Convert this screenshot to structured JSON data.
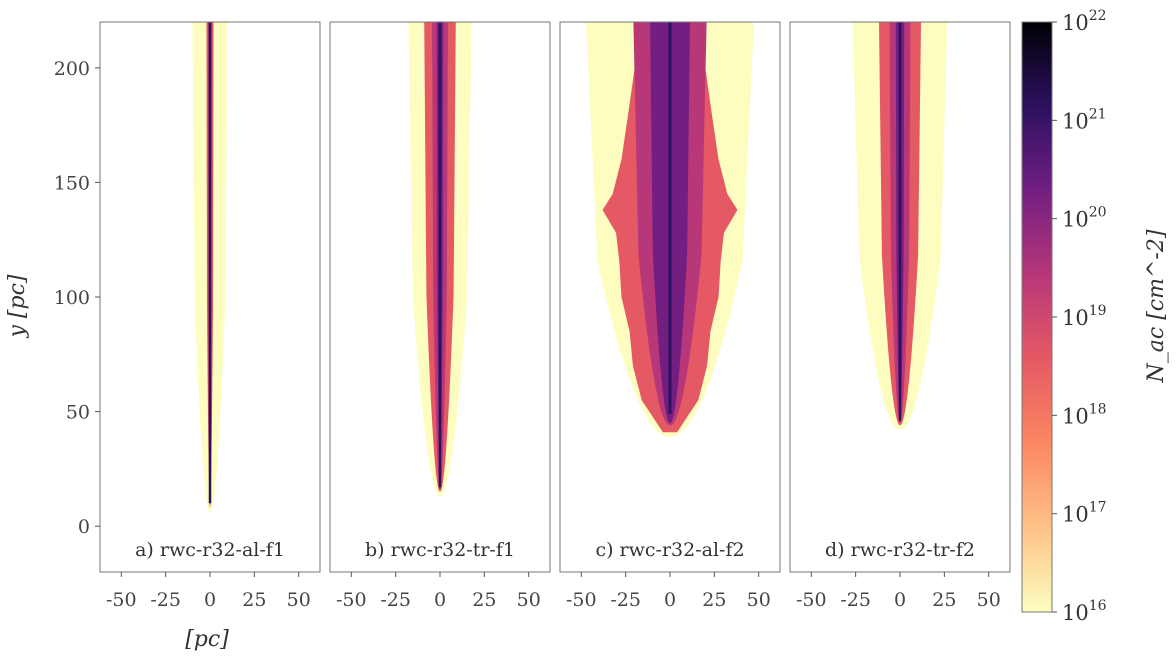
{
  "chart_data": {
    "type": "heatmap",
    "ylabel": "y [pc]",
    "xlabel": "[pc]",
    "xlim": [
      -62,
      62
    ],
    "ylim": [
      -20,
      220
    ],
    "xticks": [
      -50,
      -25,
      0,
      25,
      50
    ],
    "xtick_labels": [
      "-50",
      "-25",
      "0",
      "25",
      "50"
    ],
    "yticks": [
      0,
      50,
      100,
      150,
      200
    ],
    "ytick_labels": [
      "0",
      "50",
      "100",
      "150",
      "200"
    ],
    "colorbar": {
      "label": "N_ac [cm^-2]",
      "scale": "log",
      "min": "1e16",
      "max": "1e22",
      "ticks": [
        {
          "base": "10",
          "exp": "22"
        },
        {
          "base": "10",
          "exp": "21"
        },
        {
          "base": "10",
          "exp": "20"
        },
        {
          "base": "10",
          "exp": "19"
        },
        {
          "base": "10",
          "exp": "18"
        },
        {
          "base": "10",
          "exp": "17"
        },
        {
          "base": "10",
          "exp": "16"
        }
      ],
      "colors": [
        "#fcfdbf",
        "#fec287",
        "#fb8761",
        "#e55964",
        "#b73779",
        "#721f81",
        "#2c115f",
        "#000004"
      ]
    },
    "panels": [
      {
        "label": "a) rwc-r32-al-f1",
        "tip_y": 8,
        "outer_half_width": 10,
        "core_half_width": 2,
        "flared": false
      },
      {
        "label": "b) rwc-r32-tr-f1",
        "tip_y": 15,
        "outer_half_width": 18,
        "core_half_width": 9,
        "flared": false
      },
      {
        "label": "c) rwc-r32-al-f2",
        "tip_y": 41,
        "outer_half_width": 48,
        "core_half_width": 38,
        "flared": true
      },
      {
        "label": "d) rwc-r32-tr-f2",
        "tip_y": 44,
        "outer_half_width": 27,
        "core_half_width": 12,
        "flared": false
      }
    ]
  }
}
